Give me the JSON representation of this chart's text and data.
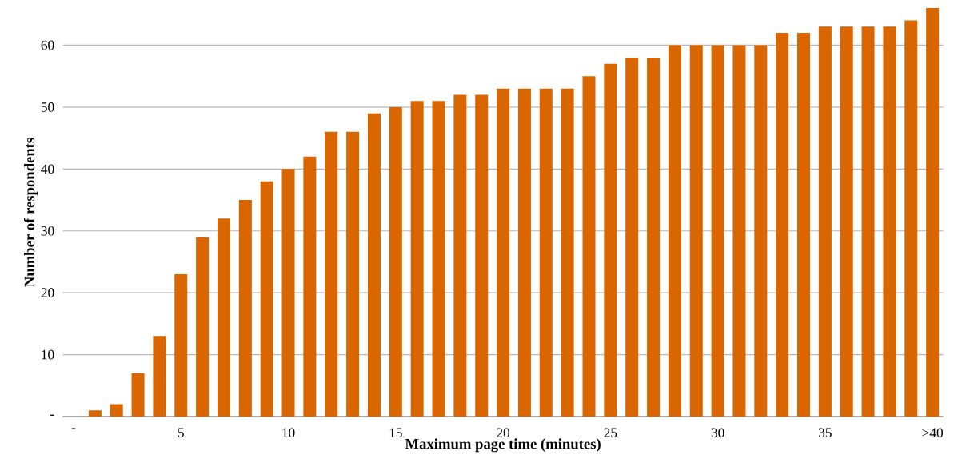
{
  "chart_data": {
    "type": "bar",
    "xlabel": "Maximum page time (minutes)",
    "ylabel": "Number of respondents",
    "categories": [
      "-",
      null,
      null,
      null,
      null,
      "5",
      null,
      null,
      null,
      null,
      "10",
      null,
      null,
      null,
      null,
      "15",
      null,
      null,
      null,
      null,
      "20",
      null,
      null,
      null,
      null,
      "25",
      null,
      null,
      null,
      null,
      "30",
      null,
      null,
      null,
      null,
      "35",
      null,
      null,
      null,
      null,
      ">40"
    ],
    "values": [
      0,
      1,
      2,
      7,
      13,
      23,
      29,
      32,
      35,
      38,
      40,
      42,
      46,
      46,
      49,
      50,
      51,
      51,
      52,
      52,
      53,
      53,
      53,
      53,
      55,
      57,
      58,
      58,
      60,
      60,
      60,
      60,
      60,
      62,
      62,
      63,
      63,
      63,
      63,
      64,
      66
    ],
    "color": "#d96600",
    "ylim": [
      0,
      66
    ],
    "yticks": [
      {
        "value": 0,
        "label": "-"
      },
      10,
      20,
      30,
      40,
      50,
      60
    ],
    "grid": "y"
  }
}
